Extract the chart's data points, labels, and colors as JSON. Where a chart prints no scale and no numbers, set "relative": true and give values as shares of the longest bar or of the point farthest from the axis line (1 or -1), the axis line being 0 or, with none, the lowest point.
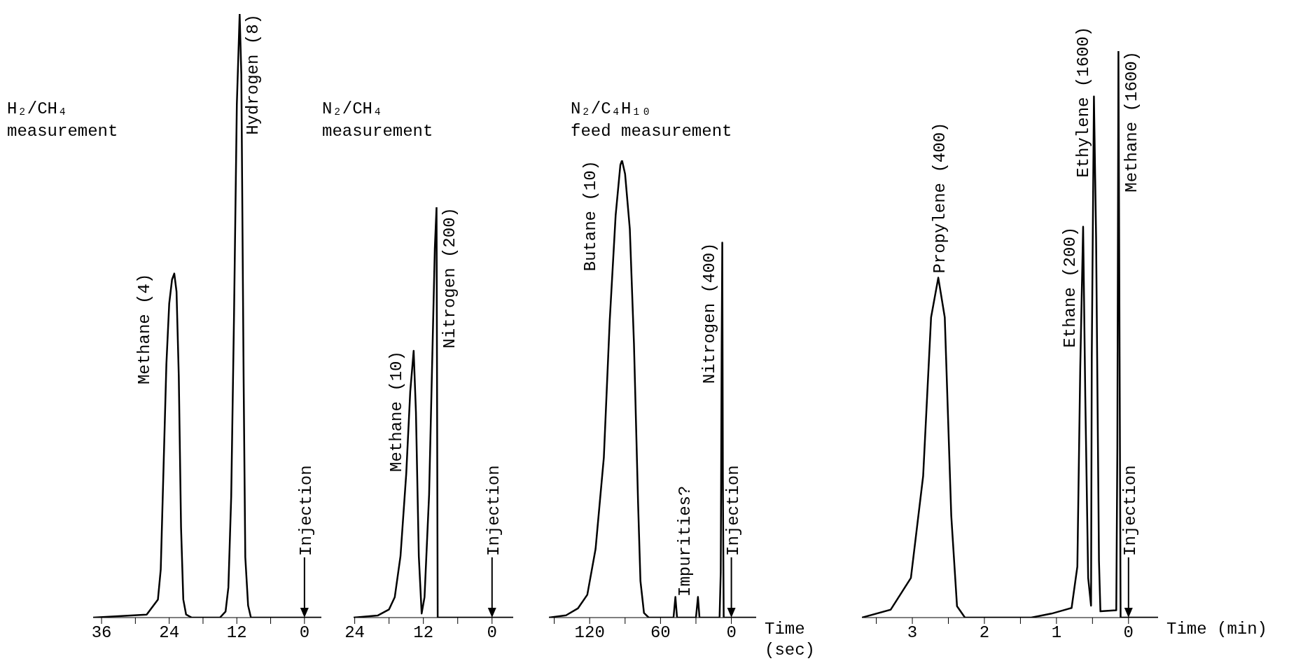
{
  "chart_data": [
    {
      "type": "line",
      "title": "H₂/CH₄\nmeasurement",
      "relative": true,
      "marker": "none",
      "x": [
        37.5,
        28,
        26,
        25.5,
        25,
        24.5,
        24,
        23.5,
        23.1,
        22.7,
        22.3,
        21.9,
        21.5,
        21,
        20,
        15,
        14,
        13.5,
        13,
        12.5,
        12,
        11.5,
        11.2,
        10.8,
        10.5,
        10,
        9.5,
        0,
        -3
      ],
      "series": [
        {
          "color": "#000000",
          "values": [
            0,
            0.005,
            0.03,
            0.08,
            0.25,
            0.42,
            0.52,
            0.56,
            0.57,
            0.54,
            0.4,
            0.15,
            0.03,
            0.005,
            0,
            0,
            0.01,
            0.05,
            0.2,
            0.5,
            0.85,
            1.0,
            0.9,
            0.4,
            0.1,
            0.02,
            0,
            0,
            0
          ]
        }
      ],
      "xlim": [
        37.5,
        -3
      ],
      "xticks": [
        36,
        {
          "value": 30,
          "label": null
        },
        24,
        {
          "value": 18,
          "label": null
        },
        12,
        {
          "value": 6,
          "label": null
        },
        0
      ],
      "annotations": [
        {
          "text": "Methane (4)",
          "x": 23.1,
          "y": 0.57
        },
        {
          "text": "Hydrogen (8)",
          "x": 11.5,
          "y": 1.0
        }
      ],
      "ref_lines": [
        {
          "axis": "x",
          "value": 0,
          "label": "Injection"
        }
      ]
    },
    {
      "type": "line",
      "title": "N₂/CH₄\nmeasurement",
      "relative": true,
      "marker": "none",
      "x": [
        24.2,
        20,
        18,
        17,
        16,
        15,
        14.3,
        13.7,
        13.3,
        12.8,
        12.3,
        11.8,
        11,
        10.5,
        10,
        9.7,
        9.5,
        0,
        -3.7
      ],
      "series": [
        {
          "color": "#000000",
          "values": [
            0,
            0.005,
            0.02,
            0.05,
            0.15,
            0.35,
            0.55,
            0.65,
            0.5,
            0.15,
            0.01,
            0.05,
            0.3,
            0.6,
            0.9,
            1.0,
            0,
            0,
            0
          ]
        }
      ],
      "xlim": [
        24.2,
        -3.7
      ],
      "xticks": [
        24,
        {
          "value": 18,
          "label": null
        },
        12,
        {
          "value": 6,
          "label": null
        },
        0
      ],
      "annotations": [
        {
          "text": "Methane (10)",
          "x": 13.7,
          "y": 0.65
        },
        {
          "text": "Nitrogen (200)",
          "x": 9.7,
          "y": 1.0
        }
      ],
      "ref_lines": [
        {
          "axis": "x",
          "value": 0,
          "label": "Injection"
        }
      ]
    },
    {
      "type": "line",
      "title": "N₂/C₄H₁₀\nfeed measurement",
      "xlabel": "Time (sec)",
      "relative": true,
      "marker": "none",
      "x": [
        154.5,
        140,
        130,
        122,
        115,
        108,
        103,
        98,
        94,
        92.6,
        90,
        86,
        82.5,
        79,
        77,
        74,
        70,
        49,
        47.4,
        46,
        30,
        28.3,
        27,
        10,
        9,
        8.2,
        7.7,
        7.2,
        6.5,
        5,
        -21
      ],
      "series": [
        {
          "color": "#000000",
          "values": [
            0,
            0.005,
            0.02,
            0.05,
            0.15,
            0.35,
            0.65,
            0.88,
            0.99,
            1.0,
            0.97,
            0.85,
            0.6,
            0.25,
            0.08,
            0.01,
            0,
            0,
            0.045,
            0,
            0,
            0.045,
            0,
            0,
            0.1,
            0.6,
            0.82,
            0.3,
            0,
            0,
            0
          ]
        }
      ],
      "xlim": [
        154.5,
        -21
      ],
      "xticks": [
        {
          "value": 150,
          "label": null
        },
        120,
        {
          "value": 90,
          "label": null
        },
        60,
        {
          "value": 30,
          "label": null
        },
        0
      ],
      "annotations": [
        {
          "text": "Butane (10)",
          "x": 92.6,
          "y": 1.0
        },
        {
          "text": "Impurities?",
          "x": 47.4,
          "y": 0.045
        },
        {
          "text": "Nitrogen (400)",
          "x": 7.7,
          "y": 0.82
        }
      ],
      "ref_lines": [
        {
          "axis": "x",
          "value": 0,
          "label": "Injection"
        }
      ]
    },
    {
      "type": "line",
      "xlabel": "Time (min)",
      "relative": true,
      "marker": "none",
      "x": [
        3.7,
        3.3,
        3.02,
        2.85,
        2.74,
        2.64,
        2.55,
        2.46,
        2.38,
        2.27,
        1.35,
        1.07,
        0.79,
        0.71,
        0.67,
        0.63,
        0.6,
        0.56,
        0.52,
        0.51,
        0.48,
        0.45,
        0.41,
        0.39,
        0.17,
        0.155,
        0.14,
        0.11,
        -0.41
      ],
      "series": [
        {
          "color": "#000000",
          "values": [
            0,
            0.014,
            0.07,
            0.25,
            0.53,
            0.6,
            0.53,
            0.18,
            0.02,
            0,
            0,
            0.007,
            0.017,
            0.09,
            0.44,
            0.69,
            0.39,
            0.07,
            0.021,
            0.46,
            0.92,
            0.67,
            0.1,
            0.011,
            0.013,
            0.3,
            1.0,
            0,
            0
          ]
        }
      ],
      "xlim": [
        3.7,
        -0.41
      ],
      "xticks": [
        {
          "value": 3.5,
          "label": null
        },
        3,
        {
          "value": 2.5,
          "label": null
        },
        2,
        {
          "value": 1.5,
          "label": null
        },
        1,
        {
          "value": 0.5,
          "label": null
        },
        0
      ],
      "annotations": [
        {
          "text": "Propylene (400)",
          "x": 2.64,
          "y": 0.6
        },
        {
          "text": "Ethane (200)",
          "x": 0.63,
          "y": 0.69
        },
        {
          "text": "Ethylene (1600)",
          "x": 0.48,
          "y": 0.92
        },
        {
          "text": "Methane (1600)",
          "x": 0.14,
          "y": 1.0
        }
      ],
      "ref_lines": [
        {
          "axis": "x",
          "value": 0,
          "label": "Injection"
        }
      ]
    }
  ]
}
